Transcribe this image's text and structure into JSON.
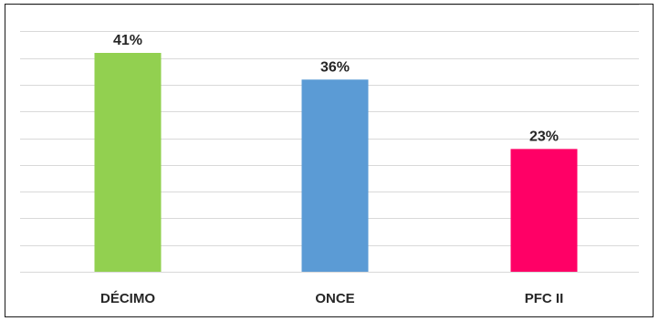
{
  "chart_data": {
    "type": "bar",
    "categories": [
      "DÉCIMO",
      "ONCE",
      "PFC II"
    ],
    "values": [
      41,
      36,
      23
    ],
    "data_labels": [
      "41%",
      "36%",
      "23%"
    ],
    "colors": [
      "#92d050",
      "#5b9bd5",
      "#ff0066"
    ],
    "ylim": [
      0,
      41
    ],
    "grid": true,
    "legend": "none",
    "title": "",
    "xlabel": "",
    "ylabel": ""
  }
}
